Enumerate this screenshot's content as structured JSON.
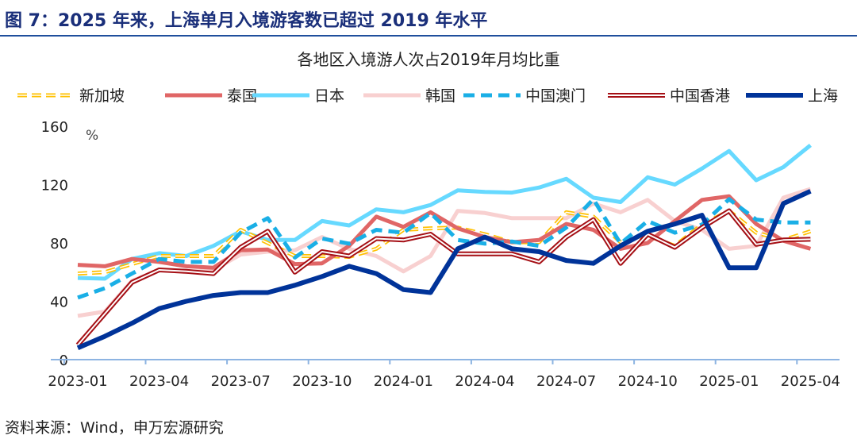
{
  "figure_title": "图 7：2025 年来，上海单月入境游客数已超过 2019 年水平",
  "source": "资料来源：Wind，申万宏源研究",
  "chart_data": {
    "type": "line",
    "title": "各地区入境游人次占2019年月均比重",
    "ylabel": "%",
    "xlabel": "",
    "ylim": [
      0,
      160
    ],
    "yticks": [
      0,
      40,
      80,
      120,
      160
    ],
    "grid": false,
    "legend_position": "top",
    "x": [
      "2023-01",
      "2023-02",
      "2023-03",
      "2023-04",
      "2023-05",
      "2023-06",
      "2023-07",
      "2023-08",
      "2023-09",
      "2023-10",
      "2023-11",
      "2023-12",
      "2024-01",
      "2024-02",
      "2024-03",
      "2024-04",
      "2024-05",
      "2024-06",
      "2024-07",
      "2024-08",
      "2024-09",
      "2024-10",
      "2024-11",
      "2024-12",
      "2025-01",
      "2025-02",
      "2025-03",
      "2025-04"
    ],
    "xtick_labels": [
      "2023-01",
      "2023-04",
      "2023-07",
      "2023-10",
      "2024-01",
      "2024-04",
      "2024-07",
      "2024-10",
      "2025-01",
      "2025-04"
    ],
    "series": [
      {
        "name": "新加坡",
        "color": "#FFC000",
        "style": "double-dashed",
        "values": [
          59,
          60,
          65.5,
          71,
          71,
          71,
          89,
          80,
          71,
          71,
          70.5,
          76,
          89,
          90,
          90.5,
          86,
          80.5,
          80.5,
          101,
          98,
          80.5,
          85,
          78,
          92.5,
          102,
          87,
          82,
          88
        ]
      },
      {
        "name": "泰国",
        "color": "#E06666",
        "style": "solid",
        "values": [
          65,
          64,
          69,
          67,
          64,
          63,
          75,
          75.5,
          65.5,
          66,
          78,
          98,
          91,
          101,
          90,
          84,
          80.5,
          82,
          93,
          89,
          76,
          80,
          95,
          109.5,
          112,
          93,
          81.5,
          76
        ]
      },
      {
        "name": "日本",
        "color": "#66D9FF",
        "style": "solid",
        "values": [
          56,
          55.5,
          69,
          73,
          71,
          78,
          88,
          82,
          82,
          95,
          92,
          103,
          101,
          106,
          116,
          115,
          114.5,
          118,
          124,
          111,
          108,
          125,
          120,
          131,
          143,
          123,
          132,
          147
        ]
      },
      {
        "name": "韩国",
        "color": "#F8D0D0",
        "style": "solid",
        "values": [
          30,
          33,
          54,
          61.5,
          60,
          61.5,
          72,
          74,
          75,
          84,
          76,
          71,
          60.5,
          71,
          102,
          100.5,
          97,
          97,
          97,
          107,
          101,
          109.5,
          95,
          89,
          76,
          78,
          111,
          117
        ]
      },
      {
        "name": "中国澳门",
        "color": "#1AAFE6",
        "style": "dashed",
        "values": [
          42.5,
          49,
          59,
          69,
          67,
          67,
          87,
          97,
          70,
          83,
          79.5,
          89,
          87,
          100.5,
          82,
          79.5,
          81,
          78,
          90.5,
          110,
          79.5,
          95,
          87,
          92.5,
          110,
          96,
          94,
          94
        ]
      },
      {
        "name": "中国香港",
        "color": "#A50F15",
        "style": "double",
        "values": [
          10,
          31.5,
          53,
          61.5,
          60.5,
          59,
          77,
          88,
          60,
          74,
          71,
          83,
          82,
          86,
          72.5,
          72.5,
          72.5,
          67,
          84,
          96,
          66,
          86,
          77,
          90.5,
          102,
          79,
          82,
          82.5
        ]
      },
      {
        "name": "上海",
        "color": "#003399",
        "style": "solid-thick",
        "values": [
          8,
          16,
          25,
          35,
          40,
          44,
          46,
          46,
          51,
          57,
          64,
          59,
          48,
          46,
          76,
          84,
          76,
          74,
          68,
          66,
          78,
          88,
          93,
          99,
          63,
          63,
          107,
          115.5
        ]
      }
    ]
  }
}
